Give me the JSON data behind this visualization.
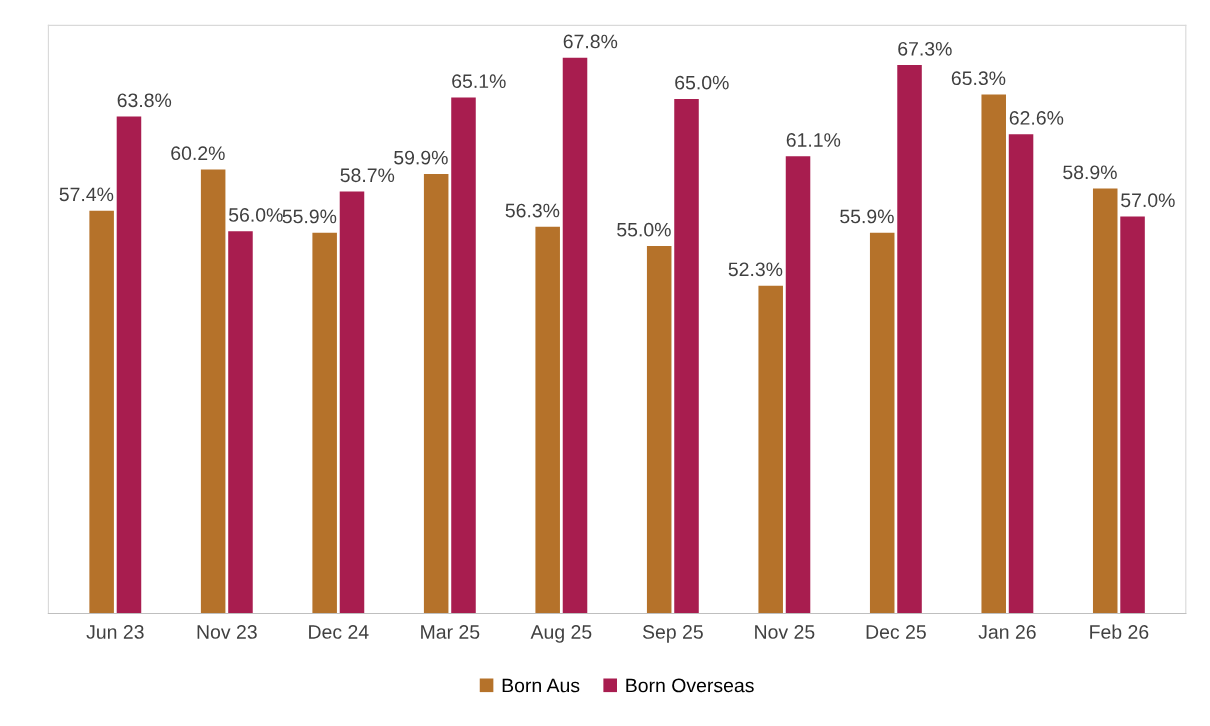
{
  "chart_data": {
    "type": "bar",
    "categories": [
      "Jun 23",
      "Nov 23",
      "Dec 24",
      "Mar 25",
      "Aug 25",
      "Sep 25",
      "Nov 25",
      "Dec 25",
      "Jan 26",
      "Feb 26"
    ],
    "series": [
      {
        "name": "Born Aus",
        "color": "#b5722a",
        "values": [
          57.4,
          60.2,
          55.9,
          59.9,
          56.3,
          55.0,
          52.3,
          55.9,
          65.3,
          58.9
        ],
        "value_labels": [
          "57.4%",
          "60.2%",
          "55.9%",
          "59.9%",
          "56.3%",
          "55.0%",
          "52.3%",
          "55.9%",
          "65.3%",
          "58.9%"
        ]
      },
      {
        "name": "Born Overseas",
        "color": "#a81d4f",
        "values": [
          63.8,
          56.0,
          58.7,
          65.1,
          67.8,
          65.0,
          61.1,
          67.3,
          62.6,
          57.0
        ],
        "value_labels": [
          "63.8%",
          "56.0%",
          "58.7%",
          "65.1%",
          "67.8%",
          "65.0%",
          "61.1%",
          "67.3%",
          "62.6%",
          "57.0%"
        ]
      }
    ],
    "ylim": [
      30,
      70
    ],
    "tick_labels": "x",
    "grid": false,
    "legend": "bottom"
  }
}
